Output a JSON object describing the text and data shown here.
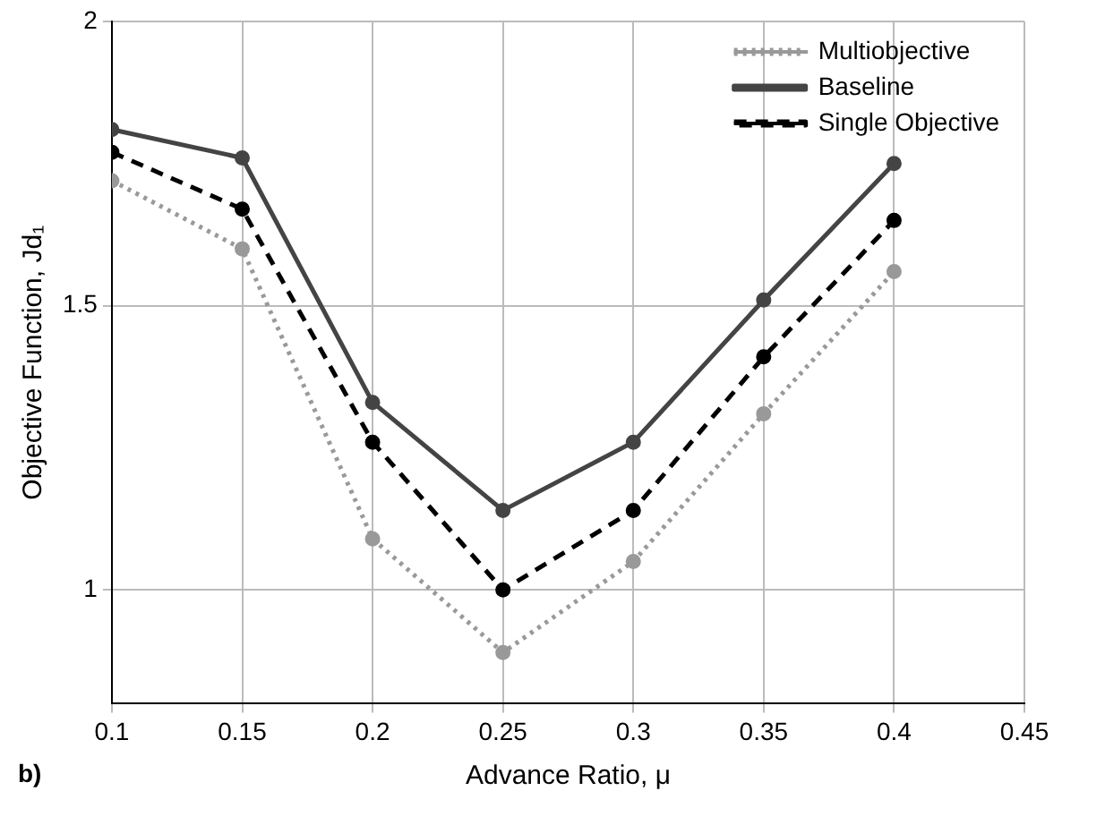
{
  "chart_data": {
    "type": "line",
    "xlabel": "Advance Ratio, μ",
    "ylabel": "Objective Function, Jd₁",
    "x": [
      0.1,
      0.15,
      0.2,
      0.25,
      0.3,
      0.35,
      0.4
    ],
    "series": [
      {
        "name": "Multiobjective",
        "color": "#999999",
        "line_style": "dotted",
        "values": [
          1.72,
          1.6,
          1.09,
          0.89,
          1.05,
          1.31,
          1.56
        ]
      },
      {
        "name": "Baseline",
        "color": "#444444",
        "line_style": "solid",
        "values": [
          1.81,
          1.76,
          1.33,
          1.14,
          1.26,
          1.51,
          1.75
        ]
      },
      {
        "name": "Single Objective",
        "color": "#000000",
        "line_style": "dashed",
        "values": [
          1.77,
          1.67,
          1.26,
          1.0,
          1.14,
          1.41,
          1.65
        ]
      }
    ],
    "xlim": [
      0.1,
      0.45
    ],
    "xticks": [
      0.1,
      0.15,
      0.2,
      0.25,
      0.3,
      0.35,
      0.4,
      0.45
    ],
    "ylim": [
      0.8,
      2
    ],
    "yticks": [
      1,
      1.5,
      2
    ],
    "grid": true,
    "legend": "top right",
    "marker": "circle",
    "annotations": [
      "b)"
    ]
  }
}
